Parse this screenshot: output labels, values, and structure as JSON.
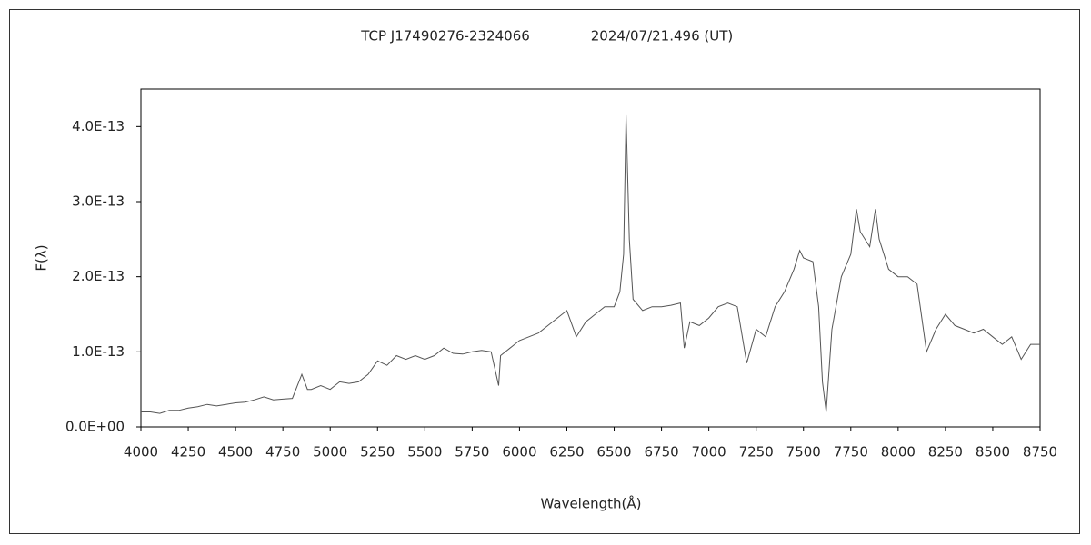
{
  "chart_data": {
    "type": "line",
    "title": "TCP J17490276-2324066",
    "date": "2024/07/21.496 (UT)",
    "x_label": "Wavelength(Å)",
    "y_label": "F(λ)",
    "xlim": [
      4000,
      8750
    ],
    "ylim": [
      0,
      4.5e-13
    ],
    "xticks": [
      4000,
      4250,
      4500,
      4750,
      5000,
      5250,
      5500,
      5750,
      6000,
      6250,
      6500,
      6750,
      7000,
      7250,
      7500,
      7750,
      8000,
      8250,
      8500,
      8750
    ],
    "yticks": [
      {
        "value": 0,
        "label": "0.0E+00"
      },
      {
        "value": 1e-13,
        "label": "1.0E-13"
      },
      {
        "value": 2e-13,
        "label": "2.0E-13"
      },
      {
        "value": 3e-13,
        "label": "3.0E-13"
      },
      {
        "value": 4e-13,
        "label": "4.0E-13"
      }
    ],
    "series": [
      {
        "color": "#555555",
        "x": [
          4000,
          4050,
          4100,
          4150,
          4200,
          4250,
          4300,
          4350,
          4400,
          4450,
          4500,
          4550,
          4600,
          4650,
          4700,
          4750,
          4800,
          4850,
          4880,
          4900,
          4950,
          5000,
          5050,
          5100,
          5150,
          5200,
          5250,
          5300,
          5350,
          5400,
          5450,
          5500,
          5550,
          5600,
          5650,
          5700,
          5750,
          5800,
          5850,
          5890,
          5900,
          5950,
          6000,
          6050,
          6100,
          6150,
          6200,
          6250,
          6300,
          6350,
          6400,
          6450,
          6500,
          6530,
          6550,
          6563,
          6580,
          6600,
          6650,
          6700,
          6750,
          6800,
          6850,
          6870,
          6900,
          6950,
          7000,
          7050,
          7100,
          7150,
          7200,
          7250,
          7300,
          7350,
          7400,
          7450,
          7480,
          7500,
          7550,
          7580,
          7600,
          7620,
          7650,
          7700,
          7750,
          7780,
          7800,
          7850,
          7880,
          7900,
          7950,
          8000,
          8050,
          8100,
          8150,
          8200,
          8250,
          8300,
          8350,
          8400,
          8450,
          8500,
          8550,
          8600,
          8650,
          8700,
          8750
        ],
        "values": [
          2e-14,
          2e-14,
          1.8e-14,
          2.2e-14,
          2.2e-14,
          2.5e-14,
          2.7e-14,
          3e-14,
          2.8e-14,
          3e-14,
          3.2e-14,
          3.3e-14,
          3.6e-14,
          4e-14,
          3.6e-14,
          3.7e-14,
          3.8e-14,
          7e-14,
          5e-14,
          5e-14,
          5.5e-14,
          5e-14,
          6e-14,
          5.8e-14,
          6e-14,
          7e-14,
          8.8e-14,
          8.2e-14,
          9.5e-14,
          9e-14,
          9.5e-14,
          9e-14,
          9.5e-14,
          1.05e-13,
          9.8e-14,
          9.7e-14,
          1e-13,
          1.02e-13,
          1e-13,
          5.5e-14,
          9.5e-14,
          1.05e-13,
          1.15e-13,
          1.2e-13,
          1.25e-13,
          1.35e-13,
          1.45e-13,
          1.55e-13,
          1.2e-13,
          1.4e-13,
          1.5e-13,
          1.6e-13,
          1.6e-13,
          1.8e-13,
          2.3e-13,
          4.15e-13,
          2.5e-13,
          1.7e-13,
          1.55e-13,
          1.6e-13,
          1.6e-13,
          1.62e-13,
          1.65e-13,
          1.05e-13,
          1.4e-13,
          1.35e-13,
          1.45e-13,
          1.6e-13,
          1.65e-13,
          1.6e-13,
          8.5e-14,
          1.3e-13,
          1.2e-13,
          1.6e-13,
          1.8e-13,
          2.1e-13,
          2.35e-13,
          2.25e-13,
          2.2e-13,
          1.6e-13,
          6e-14,
          2e-14,
          1.3e-13,
          2e-13,
          2.3e-13,
          2.9e-13,
          2.6e-13,
          2.4e-13,
          2.9e-13,
          2.5e-13,
          2.1e-13,
          2e-13,
          2e-13,
          1.9e-13,
          1e-13,
          1.3e-13,
          1.5e-13,
          1.35e-13,
          1.3e-13,
          1.25e-13,
          1.3e-13,
          1.2e-13,
          1.1e-13,
          1.2e-13,
          9e-14,
          1.1e-13,
          1.1e-13
        ]
      }
    ]
  }
}
